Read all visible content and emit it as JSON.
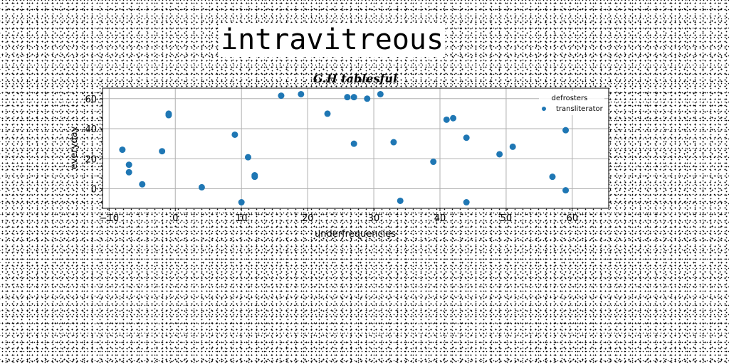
{
  "page_title": "intravitreous",
  "chart_data": {
    "type": "scatter",
    "title": "G.H tablesful",
    "xlabel": "underfrequencies",
    "ylabel": "everyday",
    "xlim": [
      -11,
      65.5
    ],
    "ylim": [
      -13,
      67
    ],
    "xticks": [
      -10,
      0,
      10,
      20,
      30,
      40,
      50,
      60
    ],
    "yticks": [
      0,
      20,
      40,
      60
    ],
    "grid": true,
    "legend": {
      "title": "defrosters",
      "placement": "top-right"
    },
    "series": [
      {
        "name": "transliterator",
        "color": "#1f77b4",
        "points": [
          [
            -8,
            26
          ],
          [
            -7,
            16
          ],
          [
            -7,
            11
          ],
          [
            -5,
            3
          ],
          [
            -2,
            25
          ],
          [
            -1,
            49
          ],
          [
            -1,
            50
          ],
          [
            4,
            1
          ],
          [
            9,
            36
          ],
          [
            10,
            -9
          ],
          [
            11,
            21
          ],
          [
            12,
            9
          ],
          [
            12,
            8
          ],
          [
            16,
            62
          ],
          [
            19,
            63
          ],
          [
            23,
            50
          ],
          [
            26,
            61
          ],
          [
            27,
            61
          ],
          [
            27,
            30
          ],
          [
            29,
            60
          ],
          [
            31,
            63
          ],
          [
            33,
            31
          ],
          [
            34,
            -8
          ],
          [
            39,
            18
          ],
          [
            41,
            46
          ],
          [
            42,
            47
          ],
          [
            44,
            34
          ],
          [
            44,
            -9
          ],
          [
            49,
            23
          ],
          [
            51,
            28
          ],
          [
            57,
            8
          ],
          [
            59,
            39
          ],
          [
            59,
            -1
          ]
        ]
      }
    ]
  }
}
